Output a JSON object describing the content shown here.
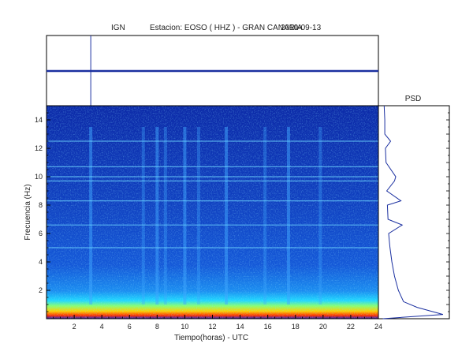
{
  "header": {
    "agency": "IGN",
    "station": "Estacion:  EOSO ( HHZ ) - GRAN CANARIA",
    "date": "2010-09-13"
  },
  "chart_data": [
    {
      "type": "line",
      "panel": "seismogram-trace",
      "x": [
        0,
        24
      ],
      "y": [
        0,
        0
      ],
      "xlim": [
        0,
        24
      ],
      "markers": [
        3.2
      ],
      "color": "#1a2fa0"
    },
    {
      "type": "heatmap",
      "panel": "spectrogram",
      "xlabel": "Tiempo(horas) - UTC",
      "ylabel": "Frecuencia  (Hz)",
      "xlim": [
        0,
        24
      ],
      "ylim": [
        0,
        15
      ],
      "x_ticks": [
        "2",
        "4",
        "6",
        "8",
        "10",
        "12",
        "14",
        "16",
        "18",
        "20",
        "22",
        "24"
      ],
      "y_ticks": [
        "2",
        "4",
        "6",
        "8",
        "10",
        "12",
        "14"
      ],
      "colormap": "jet",
      "horizontal_lines_hz": [
        12.5,
        10.7,
        9.7,
        10.0,
        8.3,
        6.6,
        5.0
      ],
      "vertical_bursts_hours": [
        3.2,
        7.0,
        8.0,
        8.6,
        10.0,
        11.0,
        13.0,
        15.8,
        17.5,
        19.8
      ]
    },
    {
      "type": "line",
      "panel": "psd",
      "title": "PSD",
      "x": [
        0.0,
        0.3,
        0.8,
        1.2,
        2.0,
        3.0,
        4.0,
        5.0,
        5.5,
        6.0,
        6.6,
        7.0,
        8.0,
        8.3,
        9.0,
        9.7,
        10.0,
        11.0,
        12.0,
        12.5,
        13.0,
        14.0,
        15.0
      ],
      "y": [
        0.02,
        0.95,
        0.55,
        0.34,
        0.26,
        0.2,
        0.16,
        0.13,
        0.12,
        0.11,
        0.32,
        0.1,
        0.09,
        0.3,
        0.08,
        0.2,
        0.22,
        0.07,
        0.06,
        0.14,
        0.05,
        0.05,
        0.04
      ],
      "xlabel": "",
      "ylabel": ""
    }
  ]
}
